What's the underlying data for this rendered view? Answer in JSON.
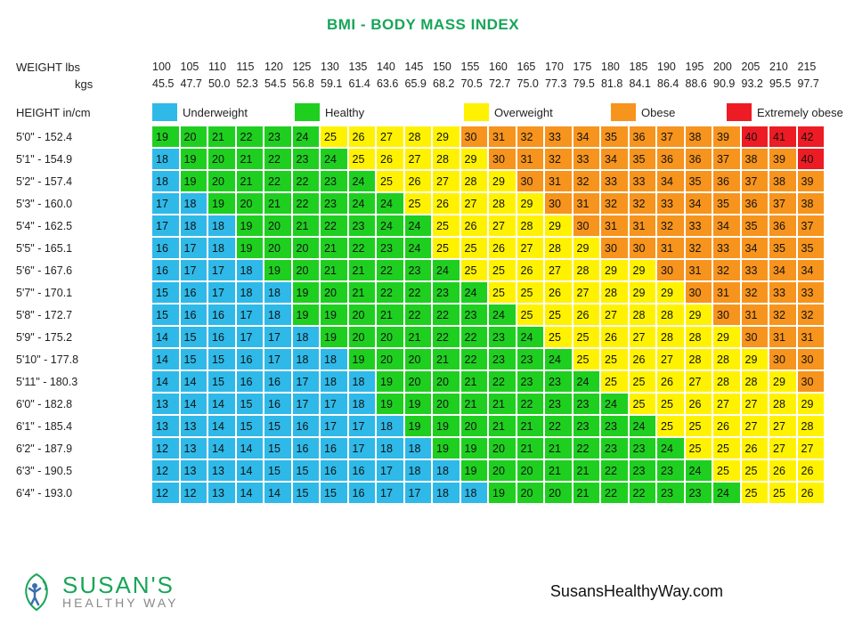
{
  "title": "BMI - BODY MASS INDEX",
  "weight": {
    "label_lbs": "WEIGHT lbs",
    "label_kgs": "kgs",
    "lbs": [
      "100",
      "105",
      "110",
      "115",
      "120",
      "125",
      "130",
      "135",
      "140",
      "145",
      "150",
      "155",
      "160",
      "165",
      "170",
      "175",
      "180",
      "185",
      "190",
      "195",
      "200",
      "205",
      "210",
      "215"
    ],
    "kgs": [
      "45.5",
      "47.7",
      "50.0",
      "52.3",
      "54.5",
      "56.8",
      "59.1",
      "61.4",
      "63.6",
      "65.9",
      "68.2",
      "70.5",
      "72.7",
      "75.0",
      "77.3",
      "79.5",
      "81.8",
      "84.1",
      "86.4",
      "88.6",
      "90.9",
      "93.2",
      "95.5",
      "97.7"
    ]
  },
  "height_label": "HEIGHT in/cm",
  "legend": [
    {
      "label": "Underweight",
      "color": "#2fb9e8"
    },
    {
      "label": "Healthy",
      "color": "#1fcf20"
    },
    {
      "label": "Overweight",
      "color": "#fff200"
    },
    {
      "label": "Obese",
      "color": "#f7941d"
    },
    {
      "label": "Extremely obese",
      "color": "#ed1c24"
    }
  ],
  "colors": {
    "underweight": "#2fb9e8",
    "healthy": "#1fcf20",
    "overweight": "#fff200",
    "obese": "#f7941d",
    "extreme": "#ed1c24"
  },
  "rows": [
    {
      "label": "5'0\"  - 152.4",
      "vals": [
        19,
        20,
        21,
        22,
        23,
        24,
        25,
        26,
        27,
        28,
        29,
        30,
        31,
        32,
        33,
        34,
        35,
        36,
        37,
        38,
        39,
        40,
        41,
        42
      ]
    },
    {
      "label": "5'1\"  - 154.9",
      "vals": [
        18,
        19,
        20,
        21,
        22,
        23,
        24,
        25,
        26,
        27,
        28,
        29,
        30,
        31,
        32,
        33,
        34,
        35,
        36,
        36,
        37,
        38,
        39,
        40
      ]
    },
    {
      "label": "5'2\"  - 157.4",
      "vals": [
        18,
        19,
        20,
        21,
        22,
        22,
        23,
        24,
        25,
        26,
        27,
        28,
        29,
        30,
        31,
        32,
        33,
        33,
        34,
        35,
        36,
        37,
        38,
        39
      ]
    },
    {
      "label": "5'3\"  - 160.0",
      "vals": [
        17,
        18,
        19,
        20,
        21,
        22,
        23,
        24,
        24,
        25,
        26,
        27,
        28,
        29,
        30,
        31,
        32,
        32,
        33,
        34,
        35,
        36,
        37,
        38
      ]
    },
    {
      "label": "5'4\"  - 162.5",
      "vals": [
        17,
        18,
        18,
        19,
        20,
        21,
        22,
        23,
        24,
        24,
        25,
        26,
        27,
        28,
        29,
        30,
        31,
        31,
        32,
        33,
        34,
        35,
        36,
        37
      ]
    },
    {
      "label": "5'5\"  - 165.1",
      "vals": [
        16,
        17,
        18,
        19,
        20,
        20,
        21,
        22,
        23,
        24,
        25,
        25,
        26,
        27,
        28,
        29,
        30,
        30,
        31,
        32,
        33,
        34,
        35,
        35
      ]
    },
    {
      "label": "5'6\"  - 167.6",
      "vals": [
        16,
        17,
        17,
        18,
        19,
        20,
        21,
        21,
        22,
        23,
        24,
        25,
        25,
        26,
        27,
        28,
        29,
        29,
        30,
        31,
        32,
        33,
        34,
        34
      ]
    },
    {
      "label": "5'7\"  - 170.1",
      "vals": [
        15,
        16,
        17,
        18,
        18,
        19,
        20,
        21,
        22,
        22,
        23,
        24,
        25,
        25,
        26,
        27,
        28,
        29,
        29,
        30,
        31,
        32,
        33,
        33
      ]
    },
    {
      "label": "5'8\"  - 172.7",
      "vals": [
        15,
        16,
        16,
        17,
        18,
        19,
        19,
        20,
        21,
        22,
        22,
        23,
        24,
        25,
        25,
        26,
        27,
        28,
        28,
        29,
        30,
        31,
        32,
        32
      ]
    },
    {
      "label": "5'9\"  - 175.2",
      "vals": [
        14,
        15,
        16,
        17,
        17,
        18,
        19,
        20,
        20,
        21,
        22,
        22,
        23,
        24,
        25,
        25,
        26,
        27,
        28,
        28,
        29,
        30,
        31,
        31
      ]
    },
    {
      "label": "5'10\" - 177.8",
      "vals": [
        14,
        15,
        15,
        16,
        17,
        18,
        18,
        19,
        20,
        20,
        21,
        22,
        23,
        23,
        24,
        25,
        25,
        26,
        27,
        28,
        28,
        29,
        30,
        30
      ]
    },
    {
      "label": "5'11\" - 180.3",
      "vals": [
        14,
        14,
        15,
        16,
        16,
        17,
        18,
        18,
        19,
        20,
        20,
        21,
        22,
        23,
        23,
        24,
        25,
        25,
        26,
        27,
        28,
        28,
        29,
        30
      ]
    },
    {
      "label": "6'0\"  - 182.8",
      "vals": [
        13,
        14,
        14,
        15,
        16,
        17,
        17,
        18,
        19,
        19,
        20,
        21,
        21,
        22,
        23,
        23,
        24,
        25,
        25,
        26,
        27,
        27,
        28,
        29
      ]
    },
    {
      "label": "6'1\"  - 185.4",
      "vals": [
        13,
        13,
        14,
        15,
        15,
        16,
        17,
        17,
        18,
        19,
        19,
        20,
        21,
        21,
        22,
        23,
        23,
        24,
        25,
        25,
        26,
        27,
        27,
        28
      ]
    },
    {
      "label": "6'2\"  - 187.9",
      "vals": [
        12,
        13,
        14,
        14,
        15,
        16,
        16,
        17,
        18,
        18,
        19,
        19,
        20,
        21,
        21,
        22,
        23,
        23,
        24,
        25,
        25,
        26,
        27,
        27
      ]
    },
    {
      "label": "6'3\"  - 190.5",
      "vals": [
        12,
        13,
        13,
        14,
        15,
        15,
        16,
        16,
        17,
        18,
        18,
        19,
        20,
        20,
        21,
        21,
        22,
        23,
        23,
        24,
        25,
        25,
        26,
        26
      ]
    },
    {
      "label": "6'4\"  - 193.0",
      "vals": [
        12,
        12,
        13,
        14,
        14,
        15,
        15,
        16,
        17,
        17,
        18,
        18,
        19,
        20,
        20,
        21,
        22,
        22,
        23,
        23,
        24,
        25,
        25,
        26
      ]
    }
  ],
  "brand": {
    "top": "SUSAN'S",
    "bottom": "HEALTHY WAY"
  },
  "url": "SusansHealthyWay.com",
  "cell_style": {
    "width": 29.5,
    "height": 23,
    "gap": 2,
    "fontsize": 12.5
  }
}
